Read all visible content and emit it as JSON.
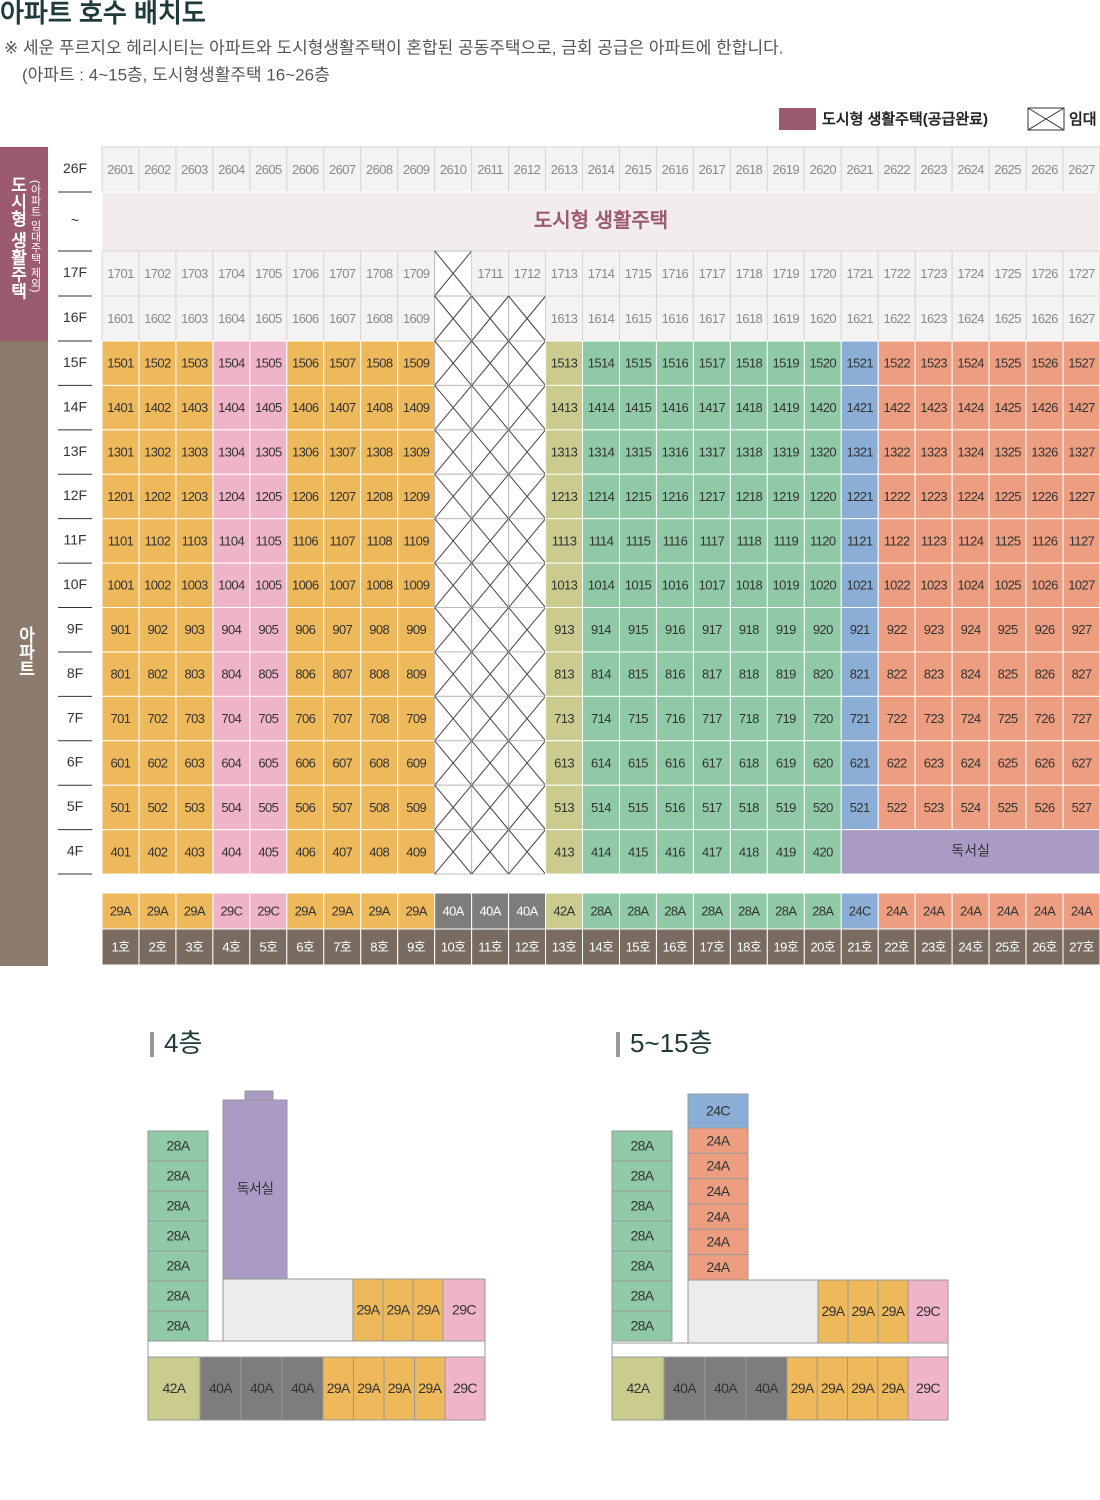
{
  "title": "아파트 호수 배치도",
  "notes": [
    "※ 세운 푸르지오 헤리시티는 아파트와 도시형생활주택이 혼합된 공동주택으로, 금회 공급은 아파트에 한합니다.",
    "(아파트 : 4~15층, 도시형생활주택 16~26층"
  ],
  "legend": [
    {
      "label": "도시형 생활주택(공급완료)",
      "color": "#9b5a6f"
    },
    {
      "label": "임대"
    }
  ],
  "side": {
    "upper": "도시형 생활주택",
    "upper_note": "(아파트 임대주택 제외)",
    "lower": "아파트",
    "upper_color": "#9b5a6f",
    "lower_color": "#8c7b6d"
  },
  "type_colors": {
    "29A": "#eeb95b",
    "29C": "#efb4c9",
    "40A": "#7f7d7c",
    "42A": "#c9cb8f",
    "28A": "#90c9a6",
    "24C": "#8aaed6",
    "24A": "#ee9e80",
    "독서실": "#a99bc4"
  },
  "grid": {
    "floors": [
      {
        "label": "26F",
        "units": [
          "2601",
          "2602",
          "2603",
          "2604",
          "2605",
          "2606",
          "2607",
          "2608",
          "2609",
          "2610",
          "2611",
          "2612",
          "2613",
          "2614",
          "2615",
          "2616",
          "2617",
          "2618",
          "2619",
          "2620",
          "2621",
          "2622",
          "2623",
          "2624",
          "2625",
          "2626",
          "2627"
        ]
      },
      {
        "label": "~",
        "merged": "도시형 생활주택"
      },
      {
        "label": "17F",
        "units": [
          "1701",
          "1702",
          "1703",
          "1704",
          "1705",
          "1706",
          "1707",
          "1708",
          "1709",
          null,
          "1711",
          "1712",
          "1713",
          "1714",
          "1715",
          "1716",
          "1717",
          "1718",
          "1719",
          "1720",
          "1721",
          "1722",
          "1723",
          "1724",
          "1725",
          "1726",
          "1727"
        ]
      },
      {
        "label": "16F",
        "units": [
          "1601",
          "1602",
          "1603",
          "1604",
          "1605",
          "1606",
          "1607",
          "1608",
          "1609",
          null,
          null,
          null,
          "1613",
          "1614",
          "1615",
          "1616",
          "1617",
          "1618",
          "1619",
          "1620",
          "1621",
          "1622",
          "1623",
          "1624",
          "1625",
          "1626",
          "1627"
        ]
      },
      {
        "label": "15F",
        "units": [
          "1501",
          "1502",
          "1503",
          "1504",
          "1505",
          "1506",
          "1507",
          "1508",
          "1509",
          null,
          null,
          null,
          "1513",
          "1514",
          "1515",
          "1516",
          "1517",
          "1518",
          "1519",
          "1520",
          "1521",
          "1522",
          "1523",
          "1524",
          "1525",
          "1526",
          "1527"
        ]
      },
      {
        "label": "14F",
        "units": [
          "1401",
          "1402",
          "1403",
          "1404",
          "1405",
          "1406",
          "1407",
          "1408",
          "1409",
          null,
          null,
          null,
          "1413",
          "1414",
          "1415",
          "1416",
          "1417",
          "1418",
          "1419",
          "1420",
          "1421",
          "1422",
          "1423",
          "1424",
          "1425",
          "1426",
          "1427"
        ]
      },
      {
        "label": "13F",
        "units": [
          "1301",
          "1302",
          "1303",
          "1304",
          "1305",
          "1306",
          "1307",
          "1308",
          "1309",
          null,
          null,
          null,
          "1313",
          "1314",
          "1315",
          "1316",
          "1317",
          "1318",
          "1319",
          "1320",
          "1321",
          "1322",
          "1323",
          "1324",
          "1325",
          "1326",
          "1327"
        ]
      },
      {
        "label": "12F",
        "units": [
          "1201",
          "1202",
          "1203",
          "1204",
          "1205",
          "1206",
          "1207",
          "1208",
          "1209",
          null,
          null,
          null,
          "1213",
          "1214",
          "1215",
          "1216",
          "1217",
          "1218",
          "1219",
          "1220",
          "1221",
          "1222",
          "1223",
          "1224",
          "1225",
          "1226",
          "1227"
        ]
      },
      {
        "label": "11F",
        "units": [
          "1101",
          "1102",
          "1103",
          "1104",
          "1105",
          "1106",
          "1107",
          "1108",
          "1109",
          null,
          null,
          null,
          "1113",
          "1114",
          "1115",
          "1116",
          "1117",
          "1118",
          "1119",
          "1120",
          "1121",
          "1122",
          "1123",
          "1124",
          "1125",
          "1126",
          "1127"
        ]
      },
      {
        "label": "10F",
        "units": [
          "1001",
          "1002",
          "1003",
          "1004",
          "1005",
          "1006",
          "1007",
          "1008",
          "1009",
          null,
          null,
          null,
          "1013",
          "1014",
          "1015",
          "1016",
          "1017",
          "1018",
          "1019",
          "1020",
          "1021",
          "1022",
          "1023",
          "1024",
          "1025",
          "1026",
          "1027"
        ]
      },
      {
        "label": "9F",
        "units": [
          "901",
          "902",
          "903",
          "904",
          "905",
          "906",
          "907",
          "908",
          "909",
          null,
          null,
          null,
          "913",
          "914",
          "915",
          "916",
          "917",
          "918",
          "919",
          "920",
          "921",
          "922",
          "923",
          "924",
          "925",
          "926",
          "927"
        ]
      },
      {
        "label": "8F",
        "units": [
          "801",
          "802",
          "803",
          "804",
          "805",
          "806",
          "807",
          "808",
          "809",
          null,
          null,
          null,
          "813",
          "814",
          "815",
          "816",
          "817",
          "818",
          "819",
          "820",
          "821",
          "822",
          "823",
          "824",
          "825",
          "826",
          "827"
        ]
      },
      {
        "label": "7F",
        "units": [
          "701",
          "702",
          "703",
          "704",
          "705",
          "706",
          "707",
          "708",
          "709",
          null,
          null,
          null,
          "713",
          "714",
          "715",
          "716",
          "717",
          "718",
          "719",
          "720",
          "721",
          "722",
          "723",
          "724",
          "725",
          "726",
          "727"
        ]
      },
      {
        "label": "6F",
        "units": [
          "601",
          "602",
          "603",
          "604",
          "605",
          "606",
          "607",
          "608",
          "609",
          null,
          null,
          null,
          "613",
          "614",
          "615",
          "616",
          "617",
          "618",
          "619",
          "620",
          "621",
          "622",
          "623",
          "624",
          "625",
          "626",
          "627"
        ]
      },
      {
        "label": "5F",
        "units": [
          "501",
          "502",
          "503",
          "504",
          "505",
          "506",
          "507",
          "508",
          "509",
          null,
          null,
          null,
          "513",
          "514",
          "515",
          "516",
          "517",
          "518",
          "519",
          "520",
          "521",
          "522",
          "523",
          "524",
          "525",
          "526",
          "527"
        ]
      },
      {
        "label": "4F",
        "units": [
          "401",
          "402",
          "403",
          "404",
          "405",
          "406",
          "407",
          "408",
          "409",
          null,
          null,
          null,
          "413",
          "414",
          "415",
          "416",
          "417",
          "418",
          "419",
          "420"
        ],
        "merged": "독서실"
      }
    ],
    "types": [
      "29A",
      "29A",
      "29A",
      "29C",
      "29C",
      "29A",
      "29A",
      "29A",
      "29A",
      "40A",
      "40A",
      "40A",
      "42A",
      "28A",
      "28A",
      "28A",
      "28A",
      "28A",
      "28A",
      "28A",
      "24C",
      "24A",
      "24A",
      "24A",
      "24A",
      "24A",
      "24A"
    ],
    "lines": [
      "1호",
      "2호",
      "3호",
      "4호",
      "5호",
      "6호",
      "7호",
      "8호",
      "9호",
      "10호",
      "11호",
      "12호",
      "13호",
      "14호",
      "15호",
      "16호",
      "17호",
      "18호",
      "19호",
      "20호",
      "21호",
      "22호",
      "23호",
      "24호",
      "25호",
      "26호",
      "27호"
    ]
  },
  "plans": [
    {
      "title": "4층",
      "blocks": [
        "28A",
        "28A",
        "28A",
        "28A",
        "28A",
        "28A",
        "28A",
        "독서실",
        "29A",
        "29A",
        "29A",
        "29C",
        "42A",
        "40A",
        "40A",
        "40A",
        "29A",
        "29A",
        "29A",
        "29A",
        "29C"
      ]
    },
    {
      "title": "5~15층",
      "blocks": [
        "28A",
        "28A",
        "28A",
        "28A",
        "28A",
        "28A",
        "28A",
        "24C",
        "24A",
        "24A",
        "24A",
        "24A",
        "24A",
        "24A",
        "29A",
        "29A",
        "29A",
        "29C",
        "42A",
        "40A",
        "40A",
        "40A",
        "29A",
        "29A",
        "29A",
        "29A",
        "29C"
      ]
    }
  ]
}
